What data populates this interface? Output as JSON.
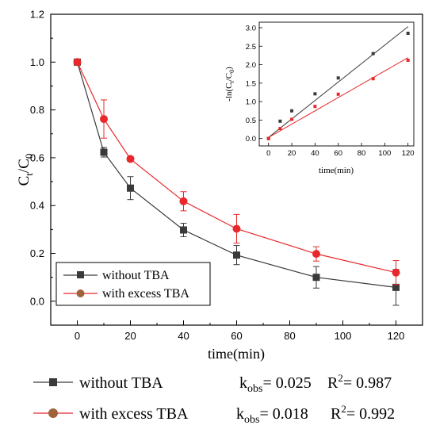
{
  "chart_data": {
    "type": "line",
    "xlabel": "time(min)",
    "ylabel": "Ct/C0",
    "xlim": [
      -10,
      130
    ],
    "ylim": [
      -0.1,
      1.2
    ],
    "x_ticks": [
      "0",
      "20",
      "40",
      "60",
      "80",
      "100",
      "120"
    ],
    "y_ticks": [
      "0.0",
      "0.2",
      "0.4",
      "0.6",
      "0.8",
      "1.0",
      "1.2"
    ],
    "x": [
      0,
      10,
      20,
      40,
      60,
      90,
      120
    ],
    "series": [
      {
        "name": "without TBA",
        "color": "#3a3a3a",
        "marker": "square",
        "values": [
          1.0,
          0.623,
          0.473,
          0.298,
          0.193,
          0.1,
          0.058
        ],
        "errors": [
          0.01,
          0.02,
          0.048,
          0.028,
          0.04,
          0.045,
          0.075
        ]
      },
      {
        "name": "with excess TBA",
        "color": "#e8282a",
        "marker": "circle",
        "values": [
          1.0,
          0.762,
          0.595,
          0.418,
          0.303,
          0.198,
          0.12
        ],
        "errors": [
          0.01,
          0.08,
          0.01,
          0.04,
          0.06,
          0.03,
          0.05
        ]
      }
    ],
    "legend": {
      "position": "bottom-left"
    },
    "inset": {
      "type": "scatter",
      "xlabel": "time(min)",
      "ylabel": "-ln(Ct/C0)",
      "xlim": [
        -8,
        125
      ],
      "ylim": [
        -0.2,
        3.15
      ],
      "x_ticks": [
        "0",
        "20",
        "40",
        "60",
        "80",
        "100",
        "120"
      ],
      "y_ticks": [
        "0.0",
        "0.5",
        "1.0",
        "1.5",
        "2.0",
        "2.5",
        "3.0"
      ],
      "x": [
        0,
        10,
        20,
        40,
        60,
        90,
        120
      ],
      "series": [
        {
          "name": "without TBA",
          "color": "#3a3a3a",
          "values": [
            0.0,
            0.47,
            0.75,
            1.21,
            1.64,
            2.3,
            2.85
          ],
          "fit": [
            [
              0,
              0.03
            ],
            [
              120,
              3.03
            ]
          ]
        },
        {
          "name": "with excess TBA",
          "color": "#e8282a",
          "values": [
            0.0,
            0.27,
            0.52,
            0.87,
            1.2,
            1.62,
            2.12
          ],
          "fit": [
            [
              0,
              0.03
            ],
            [
              120,
              2.19
            ]
          ]
        }
      ]
    }
  },
  "bottom_legend": [
    {
      "label": "without TBA",
      "k_text": "k",
      "k_sub": "obs",
      "k_value": "= 0.025",
      "r2_text": "R",
      "r2_sup": "2",
      "r2_value": "= 0.987"
    },
    {
      "label": "with excess  TBA",
      "k_text": "k",
      "k_sub": "obs",
      "k_value": "= 0.018",
      "r2_text": "R",
      "r2_sup": "2",
      "r2_value": "= 0.992"
    }
  ],
  "main_ylabel_parts": {
    "c": "C",
    "t": "t",
    "slash": "/C",
    "zero": "0"
  },
  "inset_ylabel_parts": {
    "pre": "-ln(C",
    "t": "t",
    "mid": "/C",
    "zero": "0",
    "post": ")"
  }
}
